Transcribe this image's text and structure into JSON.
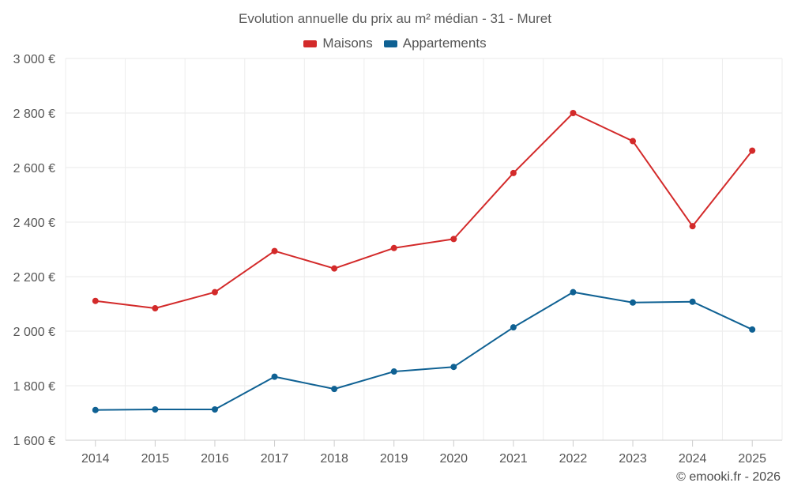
{
  "chart_data": {
    "type": "line",
    "title": "Evolution annuelle du prix au m² médian - 31 - Muret",
    "xlabel": "",
    "ylabel": "",
    "categories": [
      "2014",
      "2015",
      "2016",
      "2017",
      "2018",
      "2019",
      "2020",
      "2021",
      "2022",
      "2023",
      "2024",
      "2025"
    ],
    "ylim": [
      1600,
      3000
    ],
    "yticks": [
      1600,
      1800,
      2000,
      2200,
      2400,
      2600,
      2800,
      3000
    ],
    "ytick_labels": [
      "1 600 €",
      "1 800 €",
      "2 000 €",
      "2 200 €",
      "2 400 €",
      "2 600 €",
      "2 800 €",
      "3 000 €"
    ],
    "grid": true,
    "legend_position": "top-center",
    "series": [
      {
        "name": "Maisons",
        "color": "#d32a2a",
        "values": [
          2111,
          2084,
          2143,
          2294,
          2230,
          2305,
          2338,
          2580,
          2800,
          2697,
          2385,
          2662
        ]
      },
      {
        "name": "Appartements",
        "color": "#0f6193",
        "values": [
          1711,
          1713,
          1713,
          1833,
          1788,
          1852,
          1869,
          2014,
          2143,
          2105,
          2108,
          2006
        ]
      }
    ]
  },
  "credit": "© emooki.fr - 2026"
}
